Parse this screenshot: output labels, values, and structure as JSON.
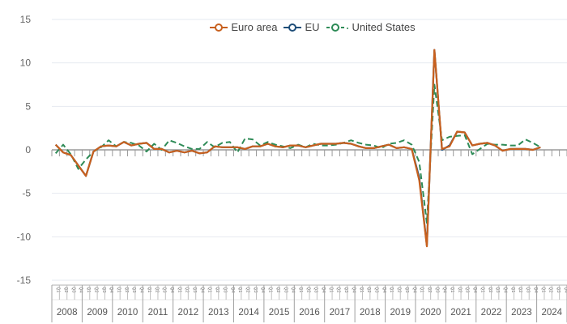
{
  "chart_data": {
    "type": "line",
    "title": "",
    "xlabel": "",
    "ylabel": "",
    "ylim": [
      -15,
      15
    ],
    "yticks": [
      15,
      10,
      5,
      0,
      -5,
      -10,
      -15
    ],
    "grid": true,
    "legend_position": "top",
    "x_years": [
      "2008",
      "2009",
      "2010",
      "2011",
      "2012",
      "2013",
      "2014",
      "2015",
      "2016",
      "2017",
      "2018",
      "2019",
      "2020",
      "2021",
      "2022",
      "2023",
      "2024"
    ],
    "x_quarters": [
      "Q1",
      "Q2",
      "Q3",
      "Q4"
    ],
    "series": [
      {
        "name": "Euro area",
        "color": "#c8601e",
        "style": "solid",
        "values": [
          0.6,
          -0.3,
          -0.6,
          -1.8,
          -3.0,
          -0.2,
          0.4,
          0.5,
          0.4,
          0.9,
          0.5,
          0.7,
          0.8,
          0.1,
          0.1,
          -0.3,
          -0.1,
          -0.3,
          -0.1,
          -0.4,
          -0.3,
          0.4,
          0.3,
          0.3,
          0.3,
          0.1,
          0.4,
          0.4,
          0.7,
          0.4,
          0.3,
          0.5,
          0.5,
          0.3,
          0.5,
          0.7,
          0.7,
          0.7,
          0.8,
          0.7,
          0.4,
          0.2,
          0.2,
          0.4,
          0.6,
          0.2,
          0.3,
          0.1,
          -3.5,
          -11.1,
          11.5,
          0.1,
          0.4,
          2.1,
          2.0,
          0.5,
          0.7,
          0.8,
          0.5,
          -0.1,
          0.1,
          0.1,
          0.1,
          0.0,
          0.3
        ]
      },
      {
        "name": "EU",
        "color": "#1f4e79",
        "style": "solid",
        "values": [
          0.6,
          -0.3,
          -0.6,
          -1.8,
          -3.0,
          -0.2,
          0.4,
          0.5,
          0.4,
          0.9,
          0.5,
          0.7,
          0.8,
          0.1,
          0.1,
          -0.3,
          -0.1,
          -0.3,
          -0.1,
          -0.4,
          -0.3,
          0.4,
          0.3,
          0.3,
          0.3,
          0.1,
          0.4,
          0.4,
          0.7,
          0.4,
          0.3,
          0.5,
          0.5,
          0.3,
          0.5,
          0.7,
          0.7,
          0.7,
          0.8,
          0.7,
          0.4,
          0.2,
          0.2,
          0.4,
          0.6,
          0.2,
          0.3,
          0.1,
          -3.2,
          -11.0,
          11.5,
          0.0,
          0.5,
          2.1,
          2.0,
          0.5,
          0.7,
          0.8,
          0.5,
          -0.1,
          0.1,
          0.1,
          0.1,
          0.0,
          0.3
        ]
      },
      {
        "name": "United States",
        "color": "#2e8b57",
        "style": "dashed",
        "values": [
          -0.4,
          0.6,
          -0.5,
          -2.2,
          -1.1,
          -0.2,
          0.3,
          1.1,
          0.4,
          0.9,
          0.8,
          0.5,
          -0.2,
          0.7,
          0.0,
          1.1,
          0.8,
          0.4,
          0.1,
          0.1,
          0.9,
          0.3,
          0.8,
          0.9,
          -0.3,
          1.3,
          1.2,
          0.5,
          0.9,
          0.6,
          0.4,
          0.2,
          0.6,
          0.3,
          0.7,
          0.5,
          0.5,
          0.6,
          0.8,
          1.1,
          0.8,
          0.6,
          0.5,
          0.2,
          0.7,
          0.8,
          1.1,
          0.6,
          -1.4,
          -8.4,
          7.5,
          1.1,
          1.5,
          1.6,
          1.7,
          -0.5,
          0.1,
          0.7,
          0.6,
          0.6,
          0.5,
          0.5,
          1.2,
          0.8,
          0.3
        ]
      }
    ]
  },
  "legend": {
    "items": [
      {
        "label": "Euro area",
        "color": "#c8601e"
      },
      {
        "label": "EU",
        "color": "#1f4e79"
      },
      {
        "label": "United States",
        "color": "#2e8b57"
      }
    ]
  }
}
